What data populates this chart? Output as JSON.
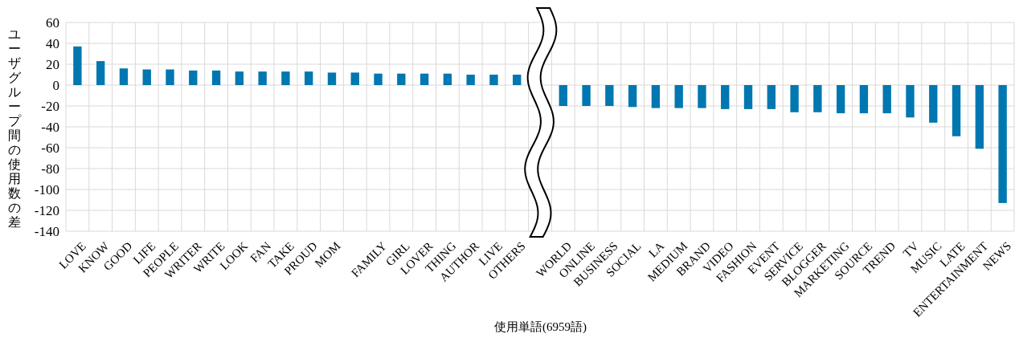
{
  "chart_data": {
    "type": "bar",
    "xlabel": "使用単語(6959語)",
    "ylabel": "ユーザグループ間の使用数の差",
    "categories": [
      "LOVE",
      "KNOW",
      "GOOD",
      "LIFE",
      "PEOPLE",
      "WRITER",
      "WRITE",
      "LOOK",
      "FAN",
      "TAKE",
      "PROUD",
      "MOM",
      null,
      "FAMILY",
      "GIRL",
      "LOVER",
      "THING",
      "AUTHOR",
      "LIVE",
      "OTHERS",
      null,
      "WORLD",
      "ONLINE",
      "BUSINESS",
      "SOCIAL",
      "LA",
      "MEDIUM",
      "BRAND",
      "VIDEO",
      "FASHION",
      "EVENT",
      "SERVICE",
      "BLOGGER",
      "MARKETING",
      "SOURCE",
      "TREND",
      "TV",
      "MUSIC",
      "LATE",
      "ENTERTAINMENT",
      "NEWS"
    ],
    "values": [
      37,
      23,
      16,
      15,
      15,
      14,
      14,
      13,
      13,
      13,
      13,
      12,
      12,
      11,
      11,
      11,
      11,
      10,
      10,
      10,
      null,
      -20,
      -20,
      -20,
      -21,
      -22,
      -22,
      -22,
      -23,
      -23,
      -23,
      -26,
      -26,
      -27,
      -27,
      -27,
      -31,
      -36,
      -49,
      -61,
      -113
    ],
    "color": "#0077b0",
    "ylim": [
      -140,
      60
    ],
    "yticks": [
      -140,
      -120,
      -100,
      -80,
      -60,
      -40,
      -20,
      0,
      20,
      40,
      60
    ],
    "grid": true
  }
}
